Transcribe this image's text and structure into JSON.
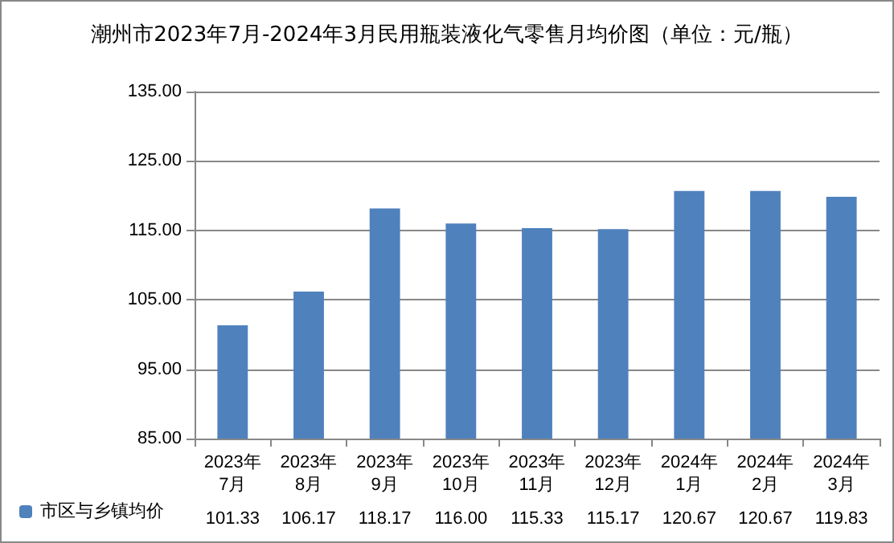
{
  "chart_data": {
    "type": "bar",
    "title": "潮州市2023年7月-2024年3月民用瓶装液化气零售月均价图（单位：元/瓶）",
    "categories": [
      "2023年\n7月",
      "2023年\n8月",
      "2023年\n9月",
      "2023年\n10月",
      "2023年\n11月",
      "2023年\n12月",
      "2024年\n1月",
      "2024年\n2月",
      "2024年\n3月"
    ],
    "series": [
      {
        "name": "市区与乡镇均价",
        "color": "#4f81bd",
        "values": [
          101.33,
          106.17,
          118.17,
          116.0,
          115.33,
          115.17,
          120.67,
          120.67,
          119.83
        ],
        "value_labels": [
          "101.33",
          "106.17",
          "118.17",
          "116.00",
          "115.33",
          "115.17",
          "120.67",
          "120.67",
          "119.83"
        ]
      }
    ],
    "ylim": [
      85,
      135
    ],
    "yticks": [
      {
        "value": 85,
        "label": "85.00"
      },
      {
        "value": 95,
        "label": "95.00"
      },
      {
        "value": 105,
        "label": "105.00"
      },
      {
        "value": 115,
        "label": "115.00"
      },
      {
        "value": 125,
        "label": "125.00"
      },
      {
        "value": 135,
        "label": "135.00"
      }
    ],
    "grid": "y",
    "legend": "bottom"
  }
}
